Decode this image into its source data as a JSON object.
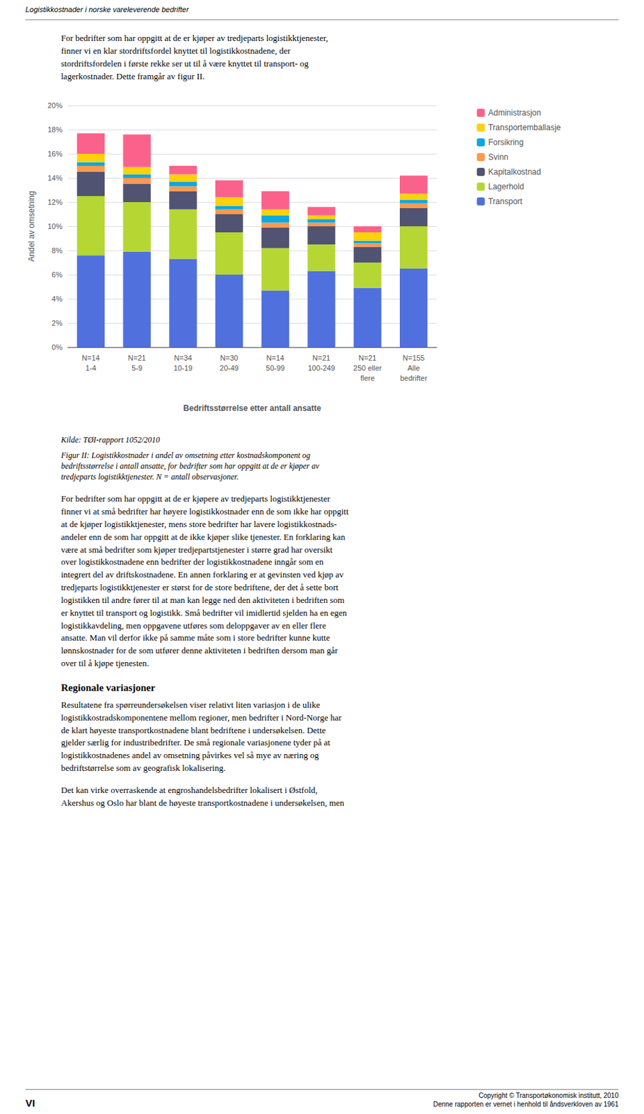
{
  "chart_data": {
    "type": "bar",
    "stacked": true,
    "grid": true,
    "legend": "right",
    "categories": [
      "N=14\n1-4",
      "N=21\n5-9",
      "N=34\n10-19",
      "N=30\n20-49",
      "N=14\n50-99",
      "N=21\n100-249",
      "N=21\n250 eller\nflere",
      "N=155\nAlle\nbedrifter"
    ],
    "series": [
      {
        "name": "Transport",
        "values": [
          7.6,
          7.9,
          7.3,
          6.0,
          4.7,
          6.3,
          4.9,
          6.5
        ]
      },
      {
        "name": "Lagerhold",
        "values": [
          4.9,
          4.1,
          4.1,
          3.5,
          3.5,
          2.2,
          2.1,
          3.5
        ]
      },
      {
        "name": "Kapitalkostnad",
        "values": [
          2.0,
          1.5,
          1.5,
          1.5,
          1.7,
          1.5,
          1.3,
          1.5
        ]
      },
      {
        "name": "Svinn",
        "values": [
          0.5,
          0.5,
          0.4,
          0.4,
          0.4,
          0.3,
          0.3,
          0.4
        ]
      },
      {
        "name": "Forsikring",
        "values": [
          0.3,
          0.3,
          0.4,
          0.3,
          0.6,
          0.3,
          0.2,
          0.3
        ]
      },
      {
        "name": "Transportemballasje",
        "values": [
          0.7,
          0.6,
          0.6,
          0.7,
          0.5,
          0.3,
          0.7,
          0.5
        ]
      },
      {
        "name": "Administrasjon",
        "values": [
          1.7,
          2.7,
          0.7,
          1.4,
          1.5,
          0.7,
          0.5,
          1.5
        ]
      }
    ],
    "xlabel": "Bedriftsstørrelse etter antall ansatte",
    "ylabel": "Andel av omsetning",
    "ylim": [
      0,
      20
    ],
    "yticks": [
      {
        "value": 0,
        "label": "0%"
      },
      {
        "value": 2,
        "label": "2%"
      },
      {
        "value": 4,
        "label": "4%"
      },
      {
        "value": 6,
        "label": "6%"
      },
      {
        "value": 8,
        "label": "8%"
      },
      {
        "value": 10,
        "label": "10%"
      },
      {
        "value": 12,
        "label": "12%"
      },
      {
        "value": 14,
        "label": "14%"
      },
      {
        "value": 16,
        "label": "16%"
      },
      {
        "value": 18,
        "label": "18%"
      },
      {
        "value": 20,
        "label": "20%"
      }
    ],
    "annotations": [
      "Logistikkostnader i norske vareleverende bedrifter",
      "For bedrifter som har oppgitt at de er kjøper av tredjeparts logistikktjenester,\nfinner vi en klar stordriftsfordel knyttet til logistikkostnadene, der\nstordriftsfordelen i første rekke ser ut til å være knyttet til transport- og\nlagerkostnader. Dette framgår av figur II.",
      "Kilde: TØI-rapport 1052/2010",
      "Figur II: Logistikkostnader i andel av omsetning etter kostnadskomponent og\nbedriftsstørrelse i antall ansatte, for bedrifter som har oppgitt at de er kjøper av\ntredjeparts logistikktjenester. N = antall observasjoner.",
      "For bedrifter som har oppgitt at de er kjøpere av tredjeparts logistikktjenester\nfinner vi at små bedrifter har høyere logistikkostnader enn de som ikke har oppgitt\nat de kjøper logistikktjenester, mens store bedrifter har lavere logistikkostnads-\nandeler enn de som har oppgitt at de ikke kjøper slike tjenester. En forklaring kan\nvære at små bedrifter som kjøper tredjepartstjenester i større grad har oversikt\nover logistikkostnadene enn bedrifter der logistikkostnadene inngår som en\nintegrert del av driftskostnadene. En annen forklaring er at gevinsten ved kjøp av\ntredjeparts logistikktjenester er størst for de store bedriftene, der det å sette bort\nlogistikken til andre fører til at man kan legge ned den aktiviteten i bedriften som\ner knyttet til transport og logistikk. Små bedrifter vil imidlertid sjelden ha en egen\nlogistikkavdeling, men oppgavene utføres som deloppgaver av en eller flere\nansatte. Man vil derfor ikke på samme måte som i store bedrifter kunne kutte\nlønnskostnader for de som utfører denne aktiviteten i bedriften dersom man går\nover til å kjøpe tjenesten.",
      "Regionale variasjoner",
      "Resultatene fra spørreundersøkelsen viser relativt liten variasjon i de ulike\nlogistikkostradskomponentene mellom regioner, men bedrifter i Nord-Norge har\nde klart høyeste transportkostnadene blant bedriftene i undersøkelsen. Dette\ngjelder særlig for industribedrifter. De små regionale variasjonene tyder på at\nlogistikkostnadenes andel av omsetning påvirkes vel så mye av næring og\nbedriftstørrelse som av geografisk lokalisering.",
      "Det kan virke overraskende at engroshandelsbedrifter lokalisert i Østfold,\nAkershus og Oslo har blant de høyeste transportkostnadene i undersøkelsen, men",
      "VI",
      "Copyright © Transportøkonomisk institutt, 2010\nDenne rapporten er vernet i henhold til åndsverkloven av 1961"
    ]
  }
}
